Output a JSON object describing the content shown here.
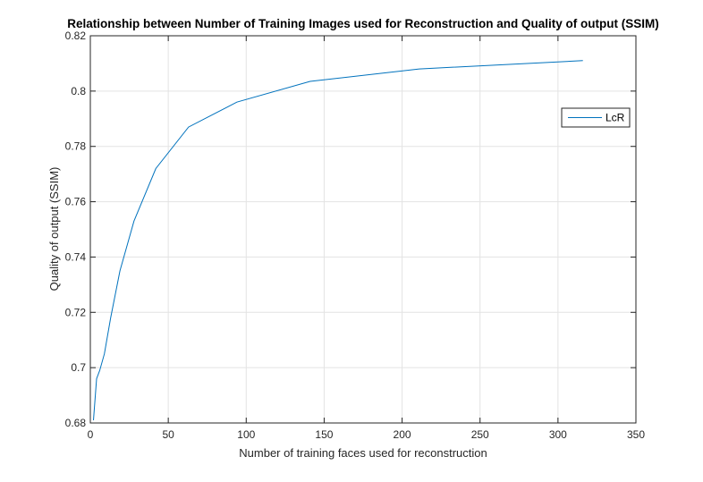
{
  "chart_data": {
    "type": "line",
    "title": "Relationship between Number of Training Images used for Reconstruction and Quality of output (SSIM)",
    "xlabel": "Number of training faces used for reconstruction",
    "ylabel": "Quality of output (SSIM)",
    "xlim": [
      0,
      350
    ],
    "ylim": [
      0.68,
      0.82
    ],
    "xticks": [
      0,
      50,
      100,
      150,
      200,
      250,
      300,
      350
    ],
    "yticks": [
      0.68,
      0.7,
      0.72,
      0.74,
      0.76,
      0.78,
      0.8,
      0.82
    ],
    "xtick_labels": [
      "0",
      "50",
      "100",
      "150",
      "200",
      "250",
      "300",
      "350"
    ],
    "ytick_labels": [
      "0.68",
      "0.7",
      "0.72",
      "0.74",
      "0.76",
      "0.78",
      "0.8",
      "0.82"
    ],
    "grid": true,
    "legend_position": "upper-right",
    "series": [
      {
        "name": "LcR",
        "color": "#0072BD",
        "x": [
          2,
          4,
          6,
          9,
          13,
          19,
          28,
          42,
          63,
          94,
          141,
          211,
          316
        ],
        "y": [
          0.681,
          0.696,
          0.699,
          0.705,
          0.718,
          0.735,
          0.753,
          0.772,
          0.787,
          0.796,
          0.8035,
          0.808,
          0.811
        ]
      }
    ]
  }
}
